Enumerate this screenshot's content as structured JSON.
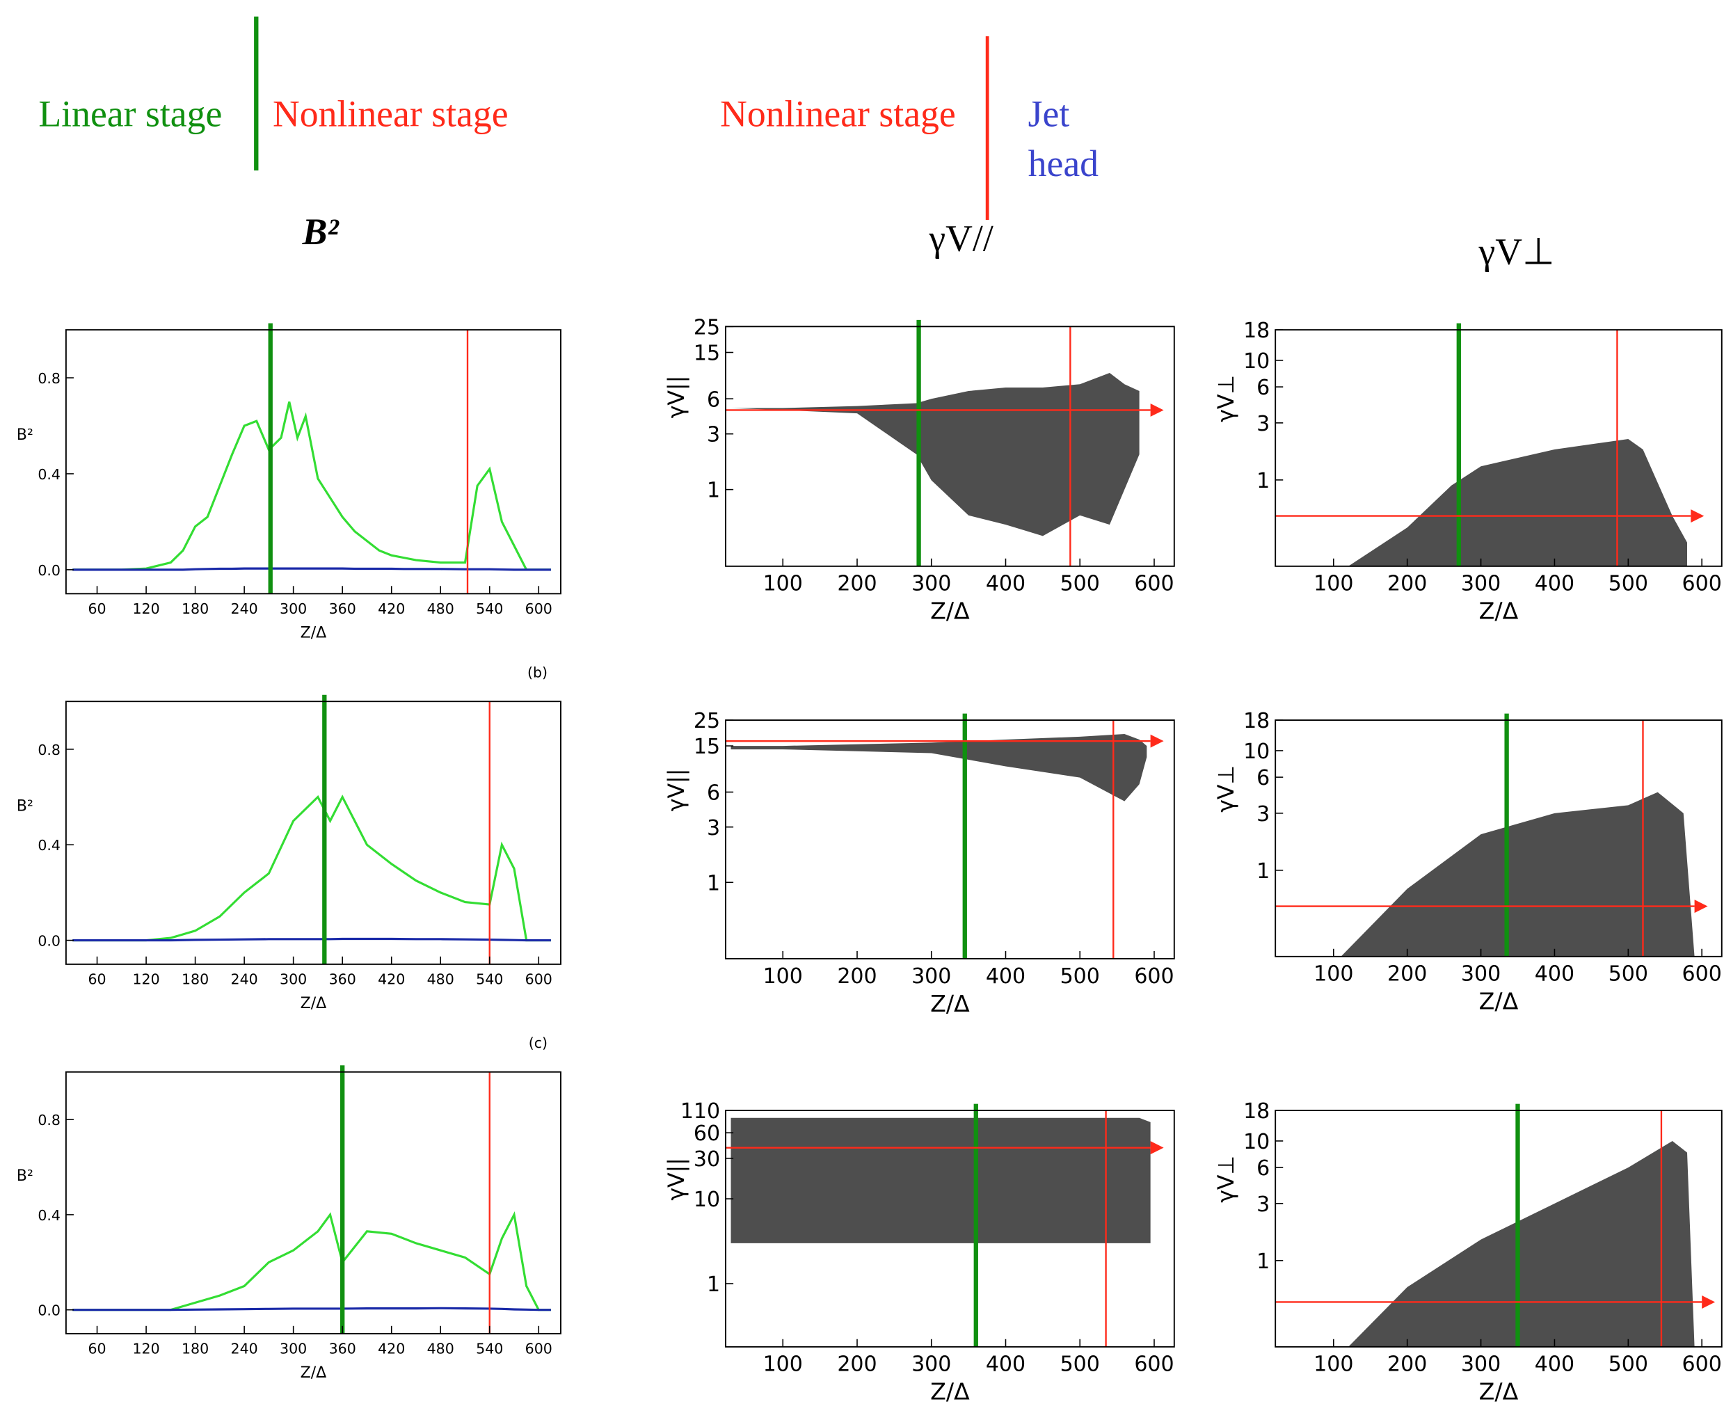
{
  "header": {
    "linear": "Linear stage",
    "nonlinear_left": "Nonlinear stage",
    "nonlinear_right": "Nonlinear stage",
    "jet": "Jet",
    "head": "head",
    "title_b2": "B²",
    "title_vpar": "γV//",
    "title_vperp": "γV⊥"
  },
  "chart_data": [
    {
      "type": "line",
      "xlabel": "Z/Δ",
      "ylabel": "B²",
      "xlim": [
        22,
        627
      ],
      "ylim": [
        -0.1,
        1.0
      ],
      "xticks": [
        60,
        120,
        180,
        240,
        300,
        360,
        420,
        480,
        540,
        600
      ],
      "yticks": [
        {
          "value": 0,
          "label": "0.0"
        },
        0.4,
        0.8
      ],
      "x": [
        30,
        90,
        120,
        150,
        165,
        180,
        195,
        210,
        225,
        240,
        255,
        270,
        285,
        295,
        305,
        315,
        330,
        345,
        360,
        375,
        390,
        405,
        420,
        435,
        450,
        480,
        510,
        525,
        540,
        555,
        570,
        585,
        615
      ],
      "series": [
        {
          "color": "#33dd33",
          "values": [
            0,
            0,
            0.005,
            0.03,
            0.08,
            0.18,
            0.22,
            0.35,
            0.48,
            0.6,
            0.62,
            0.5,
            0.55,
            0.7,
            0.55,
            0.64,
            0.38,
            0.3,
            0.22,
            0.16,
            0.12,
            0.08,
            0.06,
            0.05,
            0.04,
            0.03,
            0.03,
            0.35,
            0.42,
            0.2,
            0.1,
            0,
            0
          ]
        },
        {
          "color": "#1a2aa8",
          "values": [
            0,
            0,
            0,
            0,
            0,
            0.002,
            0.003,
            0.004,
            0.004,
            0.005,
            0.005,
            0.005,
            0.005,
            0.005,
            0.005,
            0.005,
            0.005,
            0.005,
            0.005,
            0.004,
            0.004,
            0.004,
            0.004,
            0.003,
            0.003,
            0.003,
            0.002,
            0.002,
            0.002,
            0.001,
            0,
            0,
            0
          ]
        }
      ],
      "markers": [
        {
          "x": 272,
          "color": "#109010"
        },
        {
          "x": 513,
          "color": "#ff2a1a"
        }
      ]
    },
    {
      "type": "band",
      "log_y": true,
      "xlabel": "Z/Δ",
      "ylabel": "γV||",
      "xlim": [
        23,
        627
      ],
      "ylim": [
        0.22,
        25
      ],
      "xticks": [
        100,
        200,
        300,
        400,
        500,
        600
      ],
      "yticks": [
        1,
        3,
        6,
        15,
        25
      ],
      "x": [
        30,
        100,
        200,
        280,
        300,
        350,
        400,
        450,
        500,
        540,
        560,
        580
      ],
      "upper": [
        5,
        5,
        5.2,
        5.5,
        6,
        7,
        7.5,
        7.5,
        8,
        10,
        8,
        7
      ],
      "lower": [
        5,
        4.8,
        4.5,
        2,
        1.2,
        0.6,
        0.5,
        0.4,
        0.6,
        0.5,
        1,
        2
      ],
      "arrow": {
        "y": 4.8,
        "x_end": 595
      },
      "markers": [
        {
          "x": 283,
          "color": "#109010"
        },
        {
          "x": 487,
          "color": "#ff2a1a"
        }
      ]
    },
    {
      "type": "band",
      "log_y": true,
      "xlabel": "Z/Δ",
      "ylabel": "γV⊥",
      "xlim": [
        21,
        627
      ],
      "ylim": [
        0.19,
        18
      ],
      "xticks": [
        100,
        200,
        300,
        400,
        500,
        600
      ],
      "yticks": [
        1,
        3,
        6,
        10,
        18
      ],
      "x": [
        120,
        200,
        260,
        300,
        400,
        500,
        520,
        560,
        580
      ],
      "upper": [
        0.19,
        0.4,
        0.9,
        1.3,
        1.8,
        2.2,
        1.8,
        0.5,
        0.3
      ],
      "lower": [
        0.19,
        0.19,
        0.19,
        0.19,
        0.19,
        0.19,
        0.19,
        0.19,
        0.19
      ],
      "arrow": {
        "y": 0.5,
        "x_end": 585
      },
      "markers": [
        {
          "x": 270,
          "color": "#109010"
        },
        {
          "x": 485,
          "color": "#ff2a1a"
        }
      ]
    },
    {
      "type": "line",
      "panel_label": "(b)",
      "xlabel": "Z/Δ",
      "ylabel": "B²",
      "xlim": [
        22,
        627
      ],
      "ylim": [
        -0.1,
        1.0
      ],
      "xticks": [
        60,
        120,
        180,
        240,
        300,
        360,
        420,
        480,
        540,
        600
      ],
      "yticks": [
        {
          "value": 0,
          "label": "0.0"
        },
        0.4,
        0.8
      ],
      "x": [
        30,
        120,
        150,
        180,
        210,
        240,
        270,
        300,
        330,
        345,
        360,
        390,
        420,
        450,
        480,
        510,
        540,
        555,
        570,
        585,
        615
      ],
      "series": [
        {
          "color": "#33dd33",
          "values": [
            0,
            0,
            0.01,
            0.04,
            0.1,
            0.2,
            0.28,
            0.5,
            0.6,
            0.5,
            0.6,
            0.4,
            0.32,
            0.25,
            0.2,
            0.16,
            0.15,
            0.4,
            0.3,
            0,
            0
          ]
        },
        {
          "color": "#1a2aa8",
          "values": [
            0,
            0,
            0,
            0.002,
            0.003,
            0.004,
            0.005,
            0.005,
            0.005,
            0.005,
            0.006,
            0.006,
            0.006,
            0.005,
            0.005,
            0.004,
            0.003,
            0.002,
            0.001,
            0,
            0
          ]
        }
      ],
      "markers": [
        {
          "x": 338,
          "color": "#109010"
        },
        {
          "x": 540,
          "color": "#ff2a1a"
        }
      ]
    },
    {
      "type": "band",
      "log_y": true,
      "xlabel": "Z/Δ",
      "ylabel": "γV||",
      "xlim": [
        23,
        627
      ],
      "ylim": [
        0.22,
        25
      ],
      "xticks": [
        100,
        200,
        300,
        400,
        500,
        600
      ],
      "yticks": [
        1,
        3,
        6,
        15,
        25
      ],
      "x": [
        30,
        100,
        300,
        400,
        500,
        560,
        580,
        590
      ],
      "upper": [
        15,
        15,
        16,
        17,
        18,
        19,
        17,
        15
      ],
      "lower": [
        14,
        14,
        13,
        10,
        8,
        5,
        7,
        12
      ],
      "arrow": {
        "y": 16.5,
        "x_end": 595
      },
      "markers": [
        {
          "x": 345,
          "color": "#109010"
        },
        {
          "x": 545,
          "color": "#ff2a1a"
        }
      ]
    },
    {
      "type": "band",
      "log_y": true,
      "xlabel": "Z/Δ",
      "ylabel": "γV⊥",
      "xlim": [
        21,
        627
      ],
      "ylim": [
        0.19,
        18
      ],
      "xticks": [
        100,
        200,
        300,
        400,
        500,
        600
      ],
      "yticks": [
        1,
        3,
        6,
        10,
        18
      ],
      "x": [
        110,
        200,
        300,
        400,
        500,
        540,
        575,
        590
      ],
      "upper": [
        0.19,
        0.7,
        2,
        3,
        3.5,
        4.5,
        3,
        0.19
      ],
      "lower": [
        0.19,
        0.19,
        0.19,
        0.19,
        0.19,
        0.19,
        0.19,
        0.19
      ],
      "arrow": {
        "y": 0.5,
        "x_end": 590
      },
      "markers": [
        {
          "x": 335,
          "color": "#109010"
        },
        {
          "x": 520,
          "color": "#ff2a1a"
        }
      ]
    },
    {
      "type": "line",
      "panel_label": "(c)",
      "xlabel": "Z/Δ",
      "ylabel": "B²",
      "xlim": [
        22,
        627
      ],
      "ylim": [
        -0.1,
        1.0
      ],
      "xticks": [
        60,
        120,
        180,
        240,
        300,
        360,
        420,
        480,
        540,
        600
      ],
      "yticks": [
        {
          "value": 0,
          "label": "0.0"
        },
        0.4,
        0.8
      ],
      "x": [
        30,
        150,
        180,
        210,
        240,
        270,
        300,
        330,
        345,
        360,
        390,
        420,
        450,
        480,
        510,
        540,
        555,
        570,
        585,
        600,
        615
      ],
      "series": [
        {
          "color": "#33dd33",
          "values": [
            0,
            0,
            0.03,
            0.06,
            0.1,
            0.2,
            0.25,
            0.33,
            0.4,
            0.2,
            0.33,
            0.32,
            0.28,
            0.25,
            0.22,
            0.15,
            0.3,
            0.4,
            0.1,
            0,
            0
          ]
        },
        {
          "color": "#1a2aa8",
          "values": [
            0,
            0,
            0.001,
            0.002,
            0.003,
            0.004,
            0.005,
            0.005,
            0.005,
            0.005,
            0.006,
            0.006,
            0.006,
            0.007,
            0.006,
            0.005,
            0.004,
            0.002,
            0.001,
            0,
            0
          ]
        }
      ],
      "markers": [
        {
          "x": 360,
          "color": "#109010"
        },
        {
          "x": 540,
          "color": "#ff2a1a"
        }
      ]
    },
    {
      "type": "band",
      "log_y": true,
      "xlabel": "Z/Δ",
      "ylabel": "γV||",
      "xlim": [
        23,
        627
      ],
      "ylim": [
        0.18,
        110
      ],
      "xticks": [
        100,
        200,
        300,
        400,
        500,
        600
      ],
      "yticks": [
        1,
        10,
        30,
        60,
        110
      ],
      "x": [
        30,
        200,
        400,
        580,
        595
      ],
      "upper": [
        90,
        90,
        90,
        90,
        80
      ],
      "lower": [
        3,
        3,
        3,
        3,
        3
      ],
      "arrow": {
        "y": 40,
        "x_end": 595
      },
      "markers": [
        {
          "x": 360,
          "color": "#109010"
        },
        {
          "x": 535,
          "color": "#ff2a1a"
        }
      ]
    },
    {
      "type": "band",
      "log_y": true,
      "xlabel": "Z/Δ",
      "ylabel": "γV⊥",
      "xlim": [
        21,
        627
      ],
      "ylim": [
        0.19,
        18
      ],
      "xticks": [
        100,
        200,
        300,
        400,
        500,
        600
      ],
      "yticks": [
        1,
        3,
        6,
        10,
        18
      ],
      "x": [
        120,
        200,
        300,
        400,
        500,
        560,
        580,
        590
      ],
      "upper": [
        0.19,
        0.6,
        1.5,
        3,
        6,
        10,
        8,
        0.19
      ],
      "lower": [
        0.19,
        0.19,
        0.19,
        0.19,
        0.19,
        0.19,
        0.19,
        0.19
      ],
      "arrow": {
        "y": 0.45,
        "x_end": 600
      },
      "markers": [
        {
          "x": 350,
          "color": "#109010"
        },
        {
          "x": 545,
          "color": "#ff2a1a"
        }
      ]
    }
  ]
}
